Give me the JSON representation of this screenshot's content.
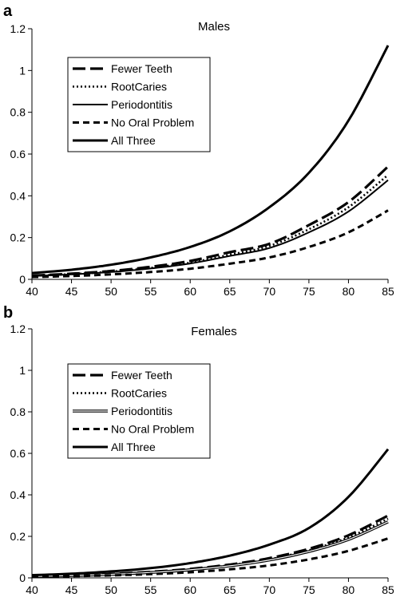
{
  "chart_data": [
    {
      "type": "line",
      "panel_label": "a",
      "title": "Males",
      "xlabel": "",
      "ylabel": "",
      "xlim": [
        40,
        85
      ],
      "ylim": [
        0,
        1.2
      ],
      "xticks": [
        "40",
        "45",
        "50",
        "55",
        "60",
        "65",
        "70",
        "75",
        "80",
        "85"
      ],
      "yticks": [
        "0",
        "0.2",
        "0.4",
        "0.6",
        "0.8",
        "1",
        "1.2"
      ],
      "grid": false,
      "legend_position": "top-left",
      "x": [
        40,
        45,
        50,
        55,
        60,
        65,
        70,
        75,
        80,
        85
      ],
      "series": [
        {
          "name": "Fewer Teeth",
          "style": "long-dash",
          "values": [
            0.018,
            0.027,
            0.04,
            0.06,
            0.088,
            0.13,
            0.17,
            0.26,
            0.37,
            0.54
          ]
        },
        {
          "name": "RootCaries",
          "style": "dotted",
          "values": [
            0.017,
            0.025,
            0.037,
            0.055,
            0.08,
            0.118,
            0.16,
            0.24,
            0.345,
            0.5
          ]
        },
        {
          "name": "Periodontitis",
          "style": "solid-thin",
          "values": [
            0.016,
            0.024,
            0.035,
            0.052,
            0.076,
            0.112,
            0.15,
            0.225,
            0.325,
            0.475
          ]
        },
        {
          "name": "No Oral Problem",
          "style": "dashed",
          "values": [
            0.011,
            0.016,
            0.024,
            0.035,
            0.051,
            0.075,
            0.105,
            0.155,
            0.225,
            0.33
          ]
        },
        {
          "name": "All Three",
          "style": "solid-thick",
          "values": [
            0.03,
            0.046,
            0.07,
            0.105,
            0.155,
            0.23,
            0.345,
            0.51,
            0.76,
            1.12
          ]
        }
      ]
    },
    {
      "type": "line",
      "panel_label": "b",
      "title": "Females",
      "xlabel": "",
      "ylabel": "",
      "xlim": [
        40,
        85
      ],
      "ylim": [
        0,
        1.2
      ],
      "xticks": [
        "40",
        "45",
        "50",
        "55",
        "60",
        "65",
        "70",
        "75",
        "80",
        "85"
      ],
      "yticks": [
        "0",
        "0.2",
        "0.4",
        "0.6",
        "0.8",
        "1",
        "1.2"
      ],
      "grid": false,
      "legend_position": "top-left",
      "x": [
        40,
        45,
        50,
        55,
        60,
        65,
        70,
        75,
        80,
        85
      ],
      "series": [
        {
          "name": "Fewer Teeth",
          "style": "long-dash",
          "values": [
            0.008,
            0.012,
            0.019,
            0.029,
            0.043,
            0.064,
            0.095,
            0.14,
            0.205,
            0.3
          ]
        },
        {
          "name": "RootCaries",
          "style": "dotted",
          "values": [
            0.008,
            0.012,
            0.018,
            0.027,
            0.041,
            0.061,
            0.09,
            0.133,
            0.195,
            0.285
          ]
        },
        {
          "name": "Periodontitis",
          "style": "double",
          "values": [
            0.007,
            0.011,
            0.017,
            0.026,
            0.039,
            0.058,
            0.086,
            0.127,
            0.185,
            0.27
          ]
        },
        {
          "name": "No Oral Problem",
          "style": "dashed",
          "values": [
            0.005,
            0.008,
            0.012,
            0.018,
            0.027,
            0.041,
            0.06,
            0.089,
            0.13,
            0.19
          ]
        },
        {
          "name": "All Three",
          "style": "solid-thick",
          "values": [
            0.013,
            0.02,
            0.031,
            0.047,
            0.071,
            0.107,
            0.16,
            0.24,
            0.39,
            0.62
          ]
        }
      ]
    }
  ]
}
